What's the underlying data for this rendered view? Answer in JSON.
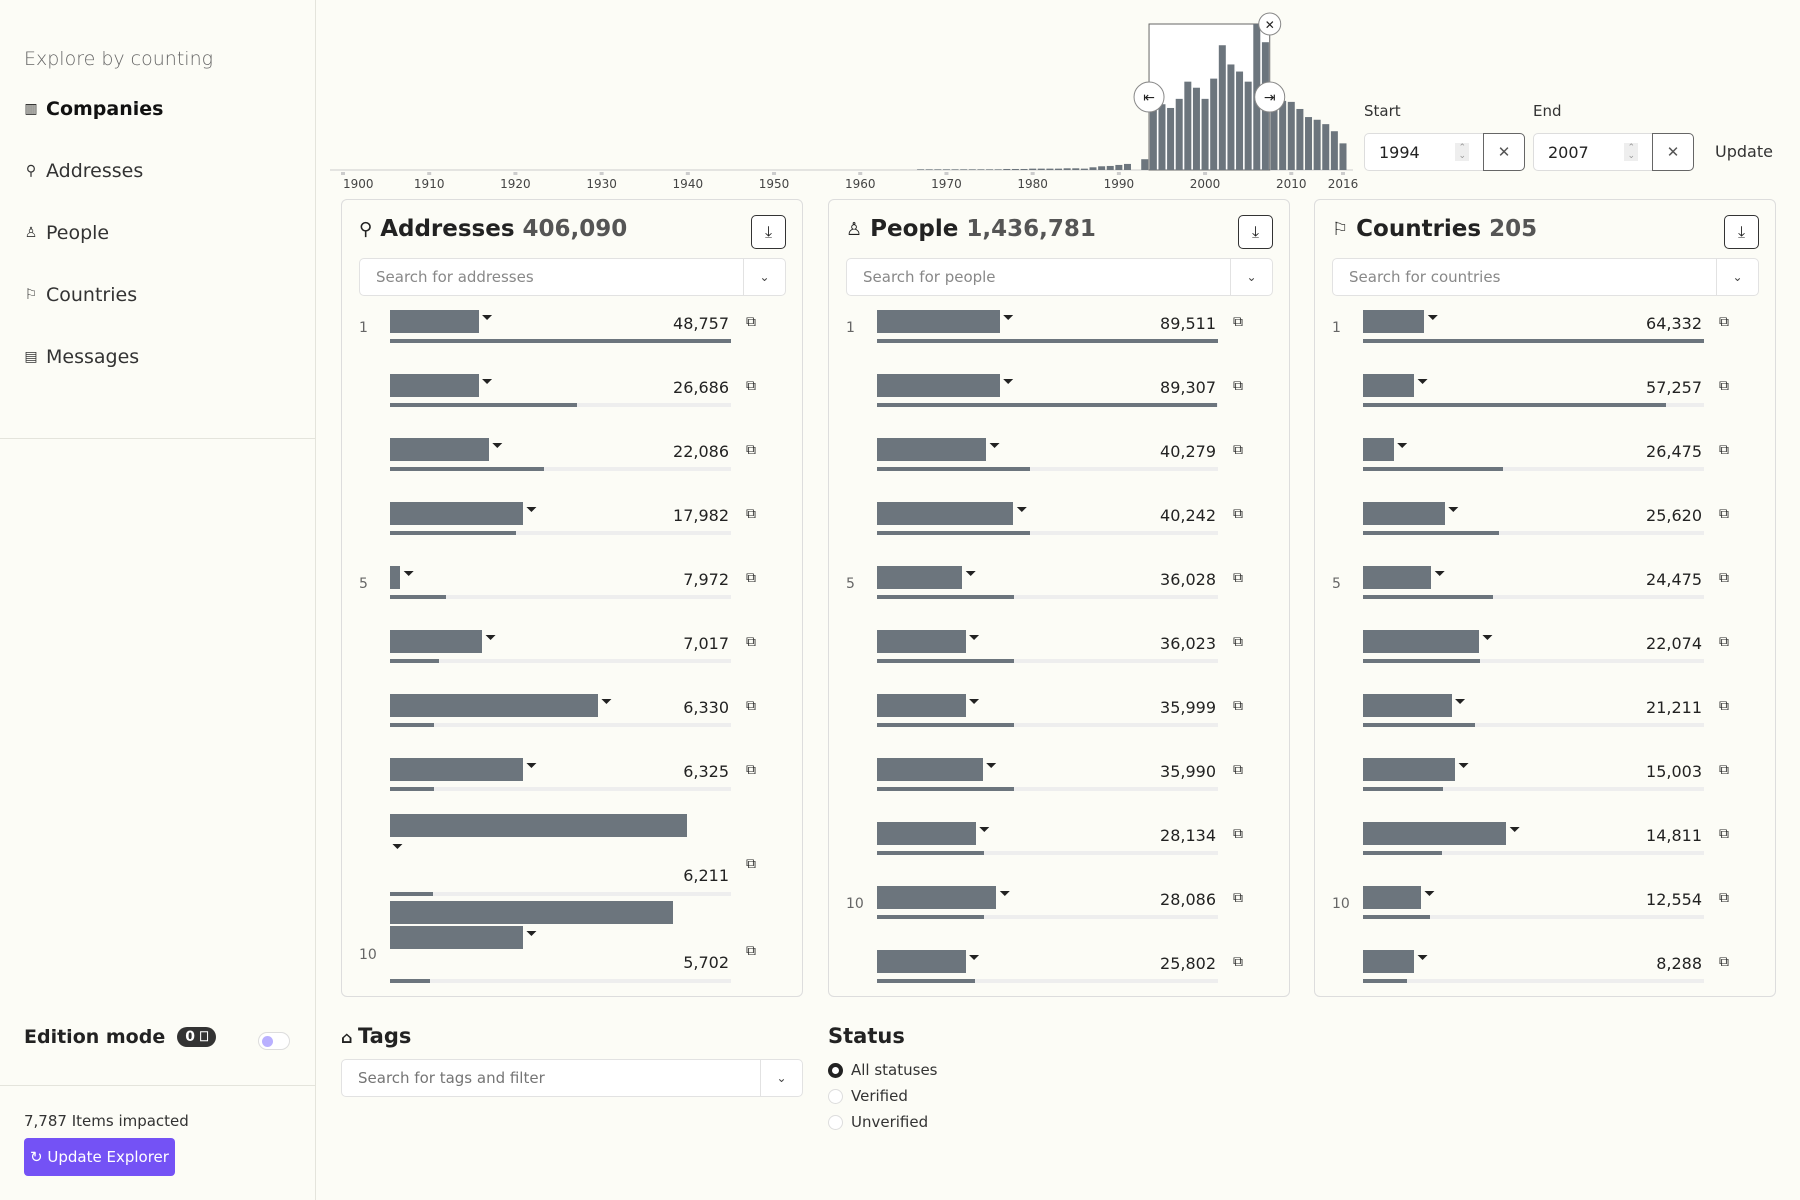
{
  "sidebar": {
    "title": "Explore by counting",
    "items": [
      {
        "label": "Companies",
        "icon": "building-icon",
        "active": true
      },
      {
        "label": "Addresses",
        "icon": "map-pin-icon"
      },
      {
        "label": "People",
        "icon": "person-icon"
      },
      {
        "label": "Countries",
        "icon": "flag-icon"
      },
      {
        "label": "Messages",
        "icon": "document-icon"
      }
    ],
    "edition_mode": "Edition mode",
    "edition_badge": "0",
    "impacted": "7,787 Items impacted",
    "update_button": "Update Explorer"
  },
  "timeline": {
    "chart_data": {
      "type": "bar",
      "x_ticks": [
        "1900",
        "1910",
        "1920",
        "1930",
        "1940",
        "1950",
        "1960",
        "1970",
        "1980",
        "1990",
        "2000",
        "2010",
        "2016"
      ],
      "xlim": [
        1900,
        2016
      ],
      "selection": [
        1994,
        2007
      ],
      "years": [
        1967,
        1968,
        1969,
        1970,
        1971,
        1972,
        1973,
        1974,
        1975,
        1976,
        1977,
        1978,
        1979,
        1980,
        1981,
        1982,
        1983,
        1984,
        1985,
        1986,
        1987,
        1988,
        1989,
        1990,
        1991,
        1992,
        1993,
        1994,
        1995,
        1996,
        1997,
        1998,
        1999,
        2000,
        2001,
        2002,
        2003,
        2004,
        2005,
        2006,
        2007,
        2008,
        2009,
        2010,
        2011,
        2012,
        2013,
        2014,
        2015,
        2016
      ],
      "values": [
        2,
        2,
        2,
        2,
        2,
        2,
        2,
        2,
        2,
        2,
        3,
        3,
        3,
        4,
        4,
        4,
        4,
        5,
        5,
        4,
        8,
        11,
        12,
        15,
        18,
        0,
        32,
        185,
        195,
        184,
        211,
        262,
        244,
        211,
        271,
        370,
        313,
        292,
        262,
        433,
        379,
        205,
        205,
        202,
        181,
        157,
        149,
        136,
        115,
        79
      ]
    },
    "start_label": "Start",
    "start_value": "1994",
    "end_label": "End",
    "end_value": "2007",
    "update": "Update"
  },
  "panels": [
    {
      "title": "Addresses",
      "count": "406,090",
      "icon": "map-pin-icon",
      "placeholder": "Search for addresses",
      "rows": [
        {
          "rank": "1",
          "value": "48,757",
          "bars": [
            0.26
          ]
        },
        {
          "value": "26,686",
          "bars": [
            0.26
          ]
        },
        {
          "value": "22,086",
          "bars": [
            0.29
          ]
        },
        {
          "value": "17,982",
          "bars": [
            0.39
          ]
        },
        {
          "rank": "5",
          "value": "7,972",
          "bars": [
            0.03
          ]
        },
        {
          "value": "7,017",
          "bars": [
            0.27
          ]
        },
        {
          "value": "6,330",
          "bars": [
            0.61
          ]
        },
        {
          "value": "6,325",
          "bars": [
            0.39
          ]
        },
        {
          "value": "6,211",
          "bars": [
            0.87
          ],
          "wrap": true
        },
        {
          "rank": "10",
          "value": "5,702",
          "bars": [
            0.83,
            0.39
          ],
          "wrap": true
        }
      ]
    },
    {
      "title": "People",
      "count": "1,436,781",
      "icon": "person-icon",
      "placeholder": "Search for people",
      "rows": [
        {
          "rank": "1",
          "value": "89,511",
          "bars": [
            0.36
          ]
        },
        {
          "value": "89,307",
          "bars": [
            0.36
          ]
        },
        {
          "value": "40,279",
          "bars": [
            0.32
          ]
        },
        {
          "value": "40,242",
          "bars": [
            0.4
          ]
        },
        {
          "rank": "5",
          "value": "36,028",
          "bars": [
            0.25
          ]
        },
        {
          "value": "36,023",
          "bars": [
            0.26
          ]
        },
        {
          "value": "35,999",
          "bars": [
            0.26
          ]
        },
        {
          "value": "35,990",
          "bars": [
            0.31
          ]
        },
        {
          "value": "28,134",
          "bars": [
            0.29
          ]
        },
        {
          "rank": "10",
          "value": "28,086",
          "bars": [
            0.35
          ]
        },
        {
          "value": "25,802",
          "bars": [
            0.26
          ]
        }
      ]
    },
    {
      "title": "Countries",
      "count": "205",
      "icon": "flag-icon",
      "placeholder": "Search for countries",
      "rows": [
        {
          "rank": "1",
          "value": "64,332",
          "bars": [
            0.18
          ]
        },
        {
          "value": "57,257",
          "bars": [
            0.15
          ]
        },
        {
          "value": "26,475",
          "bars": [
            0.09
          ]
        },
        {
          "value": "25,620",
          "bars": [
            0.24
          ]
        },
        {
          "rank": "5",
          "value": "24,475",
          "bars": [
            0.2
          ]
        },
        {
          "value": "22,074",
          "bars": [
            0.34
          ]
        },
        {
          "value": "21,211",
          "bars": [
            0.26
          ]
        },
        {
          "value": "15,003",
          "bars": [
            0.27
          ]
        },
        {
          "value": "14,811",
          "bars": [
            0.42
          ]
        },
        {
          "rank": "10",
          "value": "12,554",
          "bars": [
            0.17
          ]
        },
        {
          "value": "8,288",
          "bars": [
            0.15
          ]
        }
      ]
    }
  ],
  "tags": {
    "title": "Tags",
    "placeholder": "Search for tags and filter"
  },
  "status": {
    "title": "Status",
    "options": [
      {
        "label": "All statuses",
        "checked": true
      },
      {
        "label": "Verified"
      },
      {
        "label": "Unverified"
      }
    ]
  },
  "colors": {
    "bar": "#6c757d",
    "accent": "#7452f5",
    "background": "#fcfcf6"
  }
}
